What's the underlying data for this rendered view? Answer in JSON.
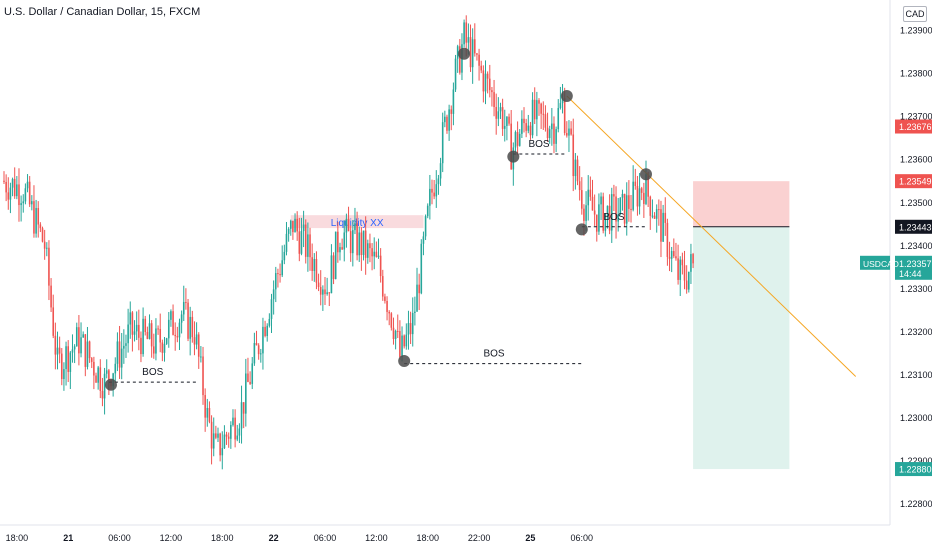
{
  "header": {
    "title": "U.S. Dollar / Canadian Dollar, 15, FXCM",
    "currency": "CAD"
  },
  "colors": {
    "up": "#26a69a",
    "down": "#ef5350",
    "trendline": "#f5a623",
    "liquidity_zone": "#f8d7da",
    "stop_zone": "#f9c9c9",
    "target_zone": "#d9f0ea",
    "pivot": "#4a4a4a"
  },
  "chart_data": {
    "type": "candlestick",
    "symbol": "USDCAD",
    "ylim": [
      1.2275,
      1.2397
    ],
    "y_ticks": [
      "1.23900",
      "1.23800",
      "1.23700",
      "1.23600",
      "1.23500",
      "1.23400",
      "1.23300",
      "1.23200",
      "1.23100",
      "1.23000",
      "1.22900",
      "1.22800"
    ],
    "x_ticks": [
      "18:00",
      "21",
      "06:00",
      "12:00",
      "18:00",
      "22",
      "06:00",
      "12:00",
      "18:00",
      "22:00",
      "25",
      "06:00"
    ],
    "bars_per_hour": 4,
    "path_points": [
      [
        0,
        1.2355
      ],
      [
        10,
        1.2353
      ],
      [
        20,
        1.234
      ],
      [
        26,
        1.2312
      ],
      [
        36,
        1.2318
      ],
      [
        48,
        1.2308
      ],
      [
        60,
        1.232
      ],
      [
        72,
        1.2317
      ],
      [
        84,
        1.2324
      ],
      [
        90,
        1.232
      ],
      [
        96,
        1.23
      ],
      [
        100,
        1.2292
      ],
      [
        104,
        1.2295
      ],
      [
        112,
        1.2302
      ],
      [
        120,
        1.2317
      ],
      [
        128,
        1.2332
      ],
      [
        136,
        1.2345
      ],
      [
        144,
        1.2338
      ],
      [
        152,
        1.233
      ],
      [
        158,
        1.2343
      ],
      [
        168,
        1.234
      ],
      [
        176,
        1.2335
      ],
      [
        184,
        1.232
      ],
      [
        186,
        1.2314
      ],
      [
        192,
        1.2322
      ],
      [
        200,
        1.235
      ],
      [
        212,
        1.238
      ],
      [
        216,
        1.2388
      ],
      [
        224,
        1.238
      ],
      [
        234,
        1.237
      ],
      [
        238,
        1.2362
      ],
      [
        246,
        1.237
      ],
      [
        258,
        1.2368
      ],
      [
        262,
        1.2373
      ],
      [
        268,
        1.2357
      ],
      [
        272,
        1.235
      ],
      [
        278,
        1.2347
      ],
      [
        290,
        1.2348
      ],
      [
        300,
        1.2354
      ],
      [
        310,
        1.2342
      ],
      [
        316,
        1.2333
      ],
      [
        320,
        1.2333
      ],
      [
        322,
        1.2335
      ]
    ],
    "last_price": "1.23357",
    "countdown": "14:44",
    "price_labels": [
      {
        "value": "1.23676",
        "color": "#ef5350"
      },
      {
        "value": "1.23549",
        "color": "#ef5350"
      },
      {
        "value": "1.23443",
        "color": "#131722"
      },
      {
        "value": "1.22880",
        "color": "#26a69a"
      }
    ],
    "annotations": [
      {
        "type": "bos",
        "label": "BOS",
        "x_start": 49,
        "x_end": 90,
        "y": 1.23082
      },
      {
        "type": "bos",
        "label": "BOS",
        "x_start": 187,
        "x_end": 271,
        "y": 1.23125
      },
      {
        "type": "bos",
        "label": "BOS",
        "x_start": 238,
        "x_end": 262,
        "y": 1.23612
      },
      {
        "type": "bos",
        "label": "BOS",
        "x_start": 270,
        "x_end": 300,
        "y": 1.23443
      },
      {
        "type": "zone",
        "label": "Liquidity XX",
        "x_start": 134,
        "x_end": 196,
        "y_top": 1.2347,
        "y_bottom": 1.2344
      },
      {
        "type": "position_stop",
        "x_start": 322,
        "x_end": 367,
        "y_top": 1.23549,
        "y_bottom": 1.23443
      },
      {
        "type": "position_target",
        "x_start": 322,
        "x_end": 367,
        "y_top": 1.23443,
        "y_bottom": 1.2288
      },
      {
        "type": "trendline",
        "x_start": 263,
        "y_start": 1.23747,
        "x_end": 398,
        "y_end": 1.23095
      },
      {
        "type": "pivot",
        "x": 50,
        "y": 1.23076
      },
      {
        "type": "pivot",
        "x": 215,
        "y": 1.23845
      },
      {
        "type": "pivot",
        "x": 238,
        "y": 1.23606
      },
      {
        "type": "pivot",
        "x": 263,
        "y": 1.23747
      },
      {
        "type": "pivot",
        "x": 270,
        "y": 1.23437
      },
      {
        "type": "pivot",
        "x": 187,
        "y": 1.23131
      },
      {
        "type": "pivot",
        "x": 300,
        "y": 1.23565
      }
    ]
  }
}
